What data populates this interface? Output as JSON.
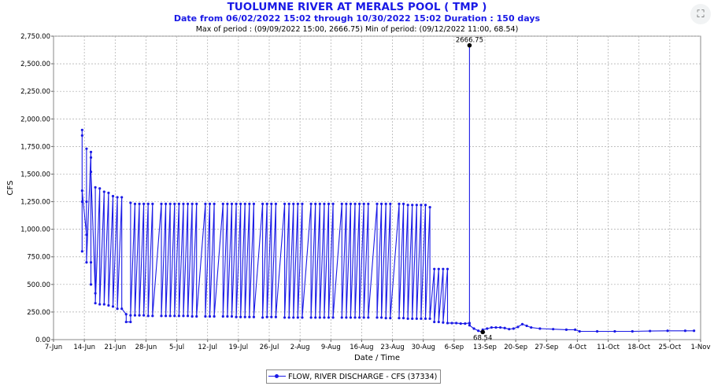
{
  "header": {
    "title": "TUOLUMNE RIVER AT MERALS POOL ( TMP )",
    "subtitle": "Date from 06/02/2022 15:02 through 10/30/2022 15:02 Duration : 150 days",
    "stats": "Max of period : (09/09/2022 15:00, 2666.75)  Min of period: (09/12/2022 11:00,  68.54)"
  },
  "icons": {
    "expand": "expand-icon"
  },
  "legend": {
    "label": "FLOW, RIVER DISCHARGE - CFS (37334)"
  },
  "chart_data": {
    "type": "line",
    "xlabel": "Date / Time",
    "ylabel": "CFS",
    "xlim": [
      "2022-06-07",
      "2022-11-01"
    ],
    "ylim": [
      0,
      2750
    ],
    "x_ticks": [
      "7-Jun",
      "14-Jun",
      "21-Jun",
      "28-Jun",
      "5-Jul",
      "12-Jul",
      "19-Jul",
      "26-Jul",
      "2-Aug",
      "9-Aug",
      "16-Aug",
      "23-Aug",
      "30-Aug",
      "6-Sep",
      "13-Sep",
      "20-Sep",
      "27-Sep",
      "4-Oct",
      "11-Oct",
      "18-Oct",
      "25-Oct",
      "1-Nov"
    ],
    "y_ticks": [
      "0.00",
      "250.00",
      "500.00",
      "750.00",
      "1,000.00",
      "1,250.00",
      "1,500.00",
      "1,750.00",
      "2,000.00",
      "2,250.00",
      "2,500.00",
      "2,750.00"
    ],
    "grid": true,
    "line_color": "#1a1ae6",
    "annotations": [
      {
        "label": "2666.75",
        "x": "2022-09-09",
        "y": 2666.75
      },
      {
        "label": "68.54",
        "x": "2022-09-12",
        "y": 68.54
      }
    ],
    "series": [
      {
        "name": "FLOW, RIVER DISCHARGE - CFS (37334)",
        "points": [
          [
            "2022-06-13",
            800
          ],
          [
            "2022-06-13",
            1250
          ],
          [
            "2022-06-13",
            1850
          ],
          [
            "2022-06-13",
            1900
          ],
          [
            "2022-06-13",
            1350
          ],
          [
            "2022-06-14",
            950
          ],
          [
            "2022-06-14",
            1250
          ],
          [
            "2022-06-14",
            1730
          ],
          [
            "2022-06-14",
            700
          ],
          [
            "2022-06-15",
            1700
          ],
          [
            "2022-06-15",
            1650
          ],
          [
            "2022-06-15",
            700
          ],
          [
            "2022-06-15",
            500
          ],
          [
            "2022-06-15",
            1520
          ],
          [
            "2022-06-16",
            420
          ],
          [
            "2022-06-16",
            1380
          ],
          [
            "2022-06-16",
            330
          ],
          [
            "2022-06-17",
            1370
          ],
          [
            "2022-06-17",
            320
          ],
          [
            "2022-06-18",
            1340
          ],
          [
            "2022-06-18",
            320
          ],
          [
            "2022-06-19",
            1330
          ],
          [
            "2022-06-19",
            310
          ],
          [
            "2022-06-20",
            1300
          ],
          [
            "2022-06-20",
            300
          ],
          [
            "2022-06-21",
            1290
          ],
          [
            "2022-06-21",
            280
          ],
          [
            "2022-06-22",
            1290
          ],
          [
            "2022-06-22",
            280
          ],
          [
            "2022-06-23",
            230
          ],
          [
            "2022-06-23",
            160
          ],
          [
            "2022-06-24",
            160
          ],
          [
            "2022-06-24",
            1240
          ],
          [
            "2022-06-24",
            220
          ],
          [
            "2022-06-25",
            1230
          ],
          [
            "2022-06-25",
            220
          ],
          [
            "2022-06-26",
            1230
          ],
          [
            "2022-06-26",
            220
          ],
          [
            "2022-06-27",
            1230
          ],
          [
            "2022-06-27",
            220
          ],
          [
            "2022-06-28",
            1230
          ],
          [
            "2022-06-28",
            215
          ],
          [
            "2022-06-29",
            1230
          ],
          [
            "2022-06-29",
            215
          ],
          [
            "2022-07-01",
            1230
          ],
          [
            "2022-07-01",
            215
          ],
          [
            "2022-07-02",
            1230
          ],
          [
            "2022-07-02",
            215
          ],
          [
            "2022-07-03",
            1230
          ],
          [
            "2022-07-03",
            215
          ],
          [
            "2022-07-04",
            1230
          ],
          [
            "2022-07-04",
            215
          ],
          [
            "2022-07-05",
            1230
          ],
          [
            "2022-07-05",
            215
          ],
          [
            "2022-07-06",
            1230
          ],
          [
            "2022-07-06",
            215
          ],
          [
            "2022-07-07",
            1230
          ],
          [
            "2022-07-07",
            215
          ],
          [
            "2022-07-08",
            1230
          ],
          [
            "2022-07-08",
            210
          ],
          [
            "2022-07-09",
            1230
          ],
          [
            "2022-07-09",
            210
          ],
          [
            "2022-07-11",
            1230
          ],
          [
            "2022-07-11",
            210
          ],
          [
            "2022-07-12",
            1230
          ],
          [
            "2022-07-12",
            210
          ],
          [
            "2022-07-13",
            1230
          ],
          [
            "2022-07-13",
            210
          ],
          [
            "2022-07-15",
            1230
          ],
          [
            "2022-07-15",
            210
          ],
          [
            "2022-07-16",
            1230
          ],
          [
            "2022-07-16",
            210
          ],
          [
            "2022-07-17",
            1230
          ],
          [
            "2022-07-17",
            210
          ],
          [
            "2022-07-18",
            1230
          ],
          [
            "2022-07-18",
            205
          ],
          [
            "2022-07-19",
            1230
          ],
          [
            "2022-07-19",
            205
          ],
          [
            "2022-07-20",
            1230
          ],
          [
            "2022-07-20",
            205
          ],
          [
            "2022-07-21",
            1230
          ],
          [
            "2022-07-21",
            205
          ],
          [
            "2022-07-22",
            1230
          ],
          [
            "2022-07-22",
            205
          ],
          [
            "2022-07-24",
            1230
          ],
          [
            "2022-07-24",
            200
          ],
          [
            "2022-07-25",
            1230
          ],
          [
            "2022-07-25",
            205
          ],
          [
            "2022-07-26",
            1230
          ],
          [
            "2022-07-26",
            205
          ],
          [
            "2022-07-27",
            1230
          ],
          [
            "2022-07-27",
            205
          ],
          [
            "2022-07-29",
            1230
          ],
          [
            "2022-07-29",
            200
          ],
          [
            "2022-07-30",
            1230
          ],
          [
            "2022-07-30",
            200
          ],
          [
            "2022-07-31",
            1230
          ],
          [
            "2022-07-31",
            200
          ],
          [
            "2022-08-01",
            1230
          ],
          [
            "2022-08-01",
            200
          ],
          [
            "2022-08-02",
            1230
          ],
          [
            "2022-08-02",
            200
          ],
          [
            "2022-08-04",
            1230
          ],
          [
            "2022-08-04",
            200
          ],
          [
            "2022-08-05",
            1230
          ],
          [
            "2022-08-05",
            200
          ],
          [
            "2022-08-06",
            1230
          ],
          [
            "2022-08-06",
            200
          ],
          [
            "2022-08-07",
            1230
          ],
          [
            "2022-08-07",
            200
          ],
          [
            "2022-08-08",
            1230
          ],
          [
            "2022-08-08",
            200
          ],
          [
            "2022-08-09",
            1230
          ],
          [
            "2022-08-09",
            200
          ],
          [
            "2022-08-11",
            1230
          ],
          [
            "2022-08-11",
            200
          ],
          [
            "2022-08-12",
            1230
          ],
          [
            "2022-08-12",
            200
          ],
          [
            "2022-08-13",
            1230
          ],
          [
            "2022-08-13",
            200
          ],
          [
            "2022-08-14",
            1230
          ],
          [
            "2022-08-14",
            200
          ],
          [
            "2022-08-15",
            1230
          ],
          [
            "2022-08-15",
            200
          ],
          [
            "2022-08-16",
            1230
          ],
          [
            "2022-08-16",
            200
          ],
          [
            "2022-08-17",
            1230
          ],
          [
            "2022-08-17",
            200
          ],
          [
            "2022-08-19",
            1230
          ],
          [
            "2022-08-19",
            200
          ],
          [
            "2022-08-20",
            1230
          ],
          [
            "2022-08-20",
            200
          ],
          [
            "2022-08-21",
            1230
          ],
          [
            "2022-08-21",
            195
          ],
          [
            "2022-08-22",
            1230
          ],
          [
            "2022-08-22",
            195
          ],
          [
            "2022-08-24",
            1230
          ],
          [
            "2022-08-24",
            195
          ],
          [
            "2022-08-25",
            1230
          ],
          [
            "2022-08-25",
            195
          ],
          [
            "2022-08-26",
            1220
          ],
          [
            "2022-08-26",
            190
          ],
          [
            "2022-08-27",
            1220
          ],
          [
            "2022-08-27",
            190
          ],
          [
            "2022-08-28",
            1220
          ],
          [
            "2022-08-28",
            190
          ],
          [
            "2022-08-29",
            1220
          ],
          [
            "2022-08-29",
            190
          ],
          [
            "2022-08-30",
            1220
          ],
          [
            "2022-08-30",
            190
          ],
          [
            "2022-08-31",
            1200
          ],
          [
            "2022-08-31",
            190
          ],
          [
            "2022-09-01",
            640
          ],
          [
            "2022-09-01",
            160
          ],
          [
            "2022-09-02",
            640
          ],
          [
            "2022-09-02",
            160
          ],
          [
            "2022-09-03",
            640
          ],
          [
            "2022-09-03",
            155
          ],
          [
            "2022-09-04",
            640
          ],
          [
            "2022-09-04",
            150
          ],
          [
            "2022-09-05",
            150
          ],
          [
            "2022-09-06",
            150
          ],
          [
            "2022-09-07",
            145
          ],
          [
            "2022-09-08",
            145
          ],
          [
            "2022-09-09",
            150
          ],
          [
            "2022-09-09",
            2666.75
          ],
          [
            "2022-09-09",
            130
          ],
          [
            "2022-09-10",
            100
          ],
          [
            "2022-09-11",
            80
          ],
          [
            "2022-09-12",
            68.54
          ],
          [
            "2022-09-12",
            90
          ],
          [
            "2022-09-13",
            100
          ],
          [
            "2022-09-14",
            110
          ],
          [
            "2022-09-15",
            110
          ],
          [
            "2022-09-16",
            110
          ],
          [
            "2022-09-17",
            105
          ],
          [
            "2022-09-18",
            95
          ],
          [
            "2022-09-19",
            100
          ],
          [
            "2022-09-20",
            115
          ],
          [
            "2022-09-21",
            140
          ],
          [
            "2022-09-22",
            125
          ],
          [
            "2022-09-23",
            110
          ],
          [
            "2022-09-25",
            100
          ],
          [
            "2022-09-28",
            95
          ],
          [
            "2022-10-01",
            90
          ],
          [
            "2022-10-03",
            90
          ],
          [
            "2022-10-04",
            75
          ],
          [
            "2022-10-08",
            75
          ],
          [
            "2022-10-12",
            75
          ],
          [
            "2022-10-16",
            75
          ],
          [
            "2022-10-20",
            78
          ],
          [
            "2022-10-24",
            80
          ],
          [
            "2022-10-28",
            80
          ],
          [
            "2022-10-30",
            80
          ]
        ]
      }
    ]
  }
}
